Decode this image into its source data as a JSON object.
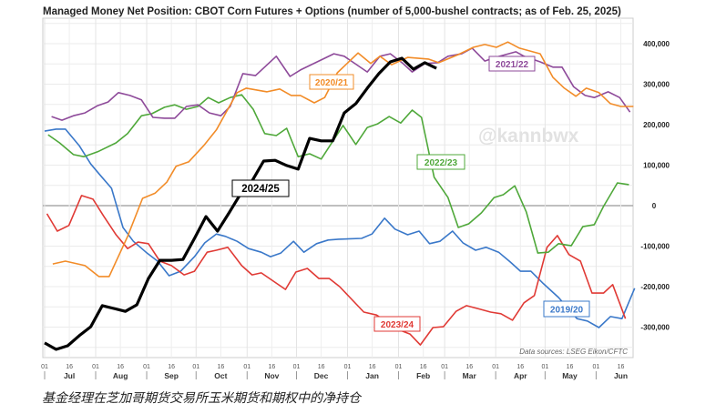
{
  "chart_data": {
    "type": "line",
    "title": "Managed Money Net Position: CBOT Corn Futures + Options (number of 5,000-bushel contracts; as of Feb. 25, 2025)",
    "xlabel": "",
    "ylabel": "",
    "x_unit": "weeks since Jul 01",
    "ylim": [
      -375000,
      465000
    ],
    "y_ticks": [
      400000,
      300000,
      200000,
      100000,
      0,
      -100000,
      -200000,
      -300000
    ],
    "y_tick_labels": [
      "400,000",
      "300,000",
      "200,000",
      "100,000",
      "0",
      "-100,000",
      "-200,000",
      "-300,000"
    ],
    "x_months": [
      "Jul",
      "Aug",
      "Sep",
      "Oct",
      "Nov",
      "Dec",
      "Jan",
      "Feb",
      "Mar",
      "Apr",
      "May",
      "Jun"
    ],
    "x_day_ticks": [
      "01",
      "16"
    ],
    "grid": true,
    "watermark": "@kannbwx",
    "source_note": "Data sources: LSEG Eikon/CFTC",
    "series": [
      {
        "name": "2019/20",
        "color": "#3a78c9",
        "width": 1.6,
        "points": [
          [
            0,
            184
          ],
          [
            1,
            189
          ],
          [
            1.8,
            189
          ],
          [
            3,
            148
          ],
          [
            4,
            103
          ],
          [
            4.8,
            76
          ],
          [
            5.8,
            43
          ],
          [
            6.8,
            -54
          ],
          [
            7.7,
            -88
          ],
          [
            8.8,
            -115
          ],
          [
            9.8,
            -137
          ],
          [
            10.8,
            -173
          ],
          [
            11.8,
            -162
          ],
          [
            13,
            -126
          ],
          [
            13.9,
            -92
          ],
          [
            14.9,
            -70
          ],
          [
            15.7,
            -76
          ],
          [
            16.7,
            -88
          ],
          [
            17.7,
            -106
          ],
          [
            18.8,
            -115
          ],
          [
            19.6,
            -126
          ],
          [
            20.5,
            -117
          ],
          [
            21.6,
            -88
          ],
          [
            22.5,
            -115
          ],
          [
            23.6,
            -94
          ],
          [
            24.6,
            -85
          ],
          [
            25.5,
            -83
          ],
          [
            27.5,
            -81
          ],
          [
            28.4,
            -70
          ],
          [
            29.5,
            -31
          ],
          [
            30.4,
            -58
          ],
          [
            31.5,
            -72
          ],
          [
            32.5,
            -63
          ],
          [
            33.4,
            -94
          ],
          [
            34.3,
            -88
          ],
          [
            35.4,
            -63
          ],
          [
            36.3,
            -92
          ],
          [
            37.4,
            -110
          ],
          [
            38.3,
            -103
          ],
          [
            39.4,
            -115
          ],
          [
            40.4,
            -139
          ],
          [
            41.3,
            -162
          ],
          [
            42.2,
            -162
          ],
          [
            43.3,
            -193
          ],
          [
            44.6,
            -227
          ],
          [
            46.2,
            -279
          ],
          [
            47.1,
            -285
          ],
          [
            48.1,
            -301
          ],
          [
            49.1,
            -274
          ],
          [
            50.1,
            -279
          ],
          [
            51.2,
            -204
          ]
        ]
      },
      {
        "name": "2020/21",
        "color": "#f28c28",
        "width": 1.6,
        "points": [
          [
            0.7,
            -144
          ],
          [
            1.8,
            -137
          ],
          [
            3.5,
            -148
          ],
          [
            4.7,
            -175
          ],
          [
            5.6,
            -175
          ],
          [
            7.2,
            -76
          ],
          [
            8.5,
            18
          ],
          [
            9.6,
            31
          ],
          [
            10.6,
            58
          ],
          [
            11.4,
            97
          ],
          [
            12.5,
            108
          ],
          [
            13.8,
            148
          ],
          [
            14.9,
            187
          ],
          [
            15.9,
            238
          ],
          [
            16.7,
            279
          ],
          [
            17.5,
            290
          ],
          [
            19.3,
            281
          ],
          [
            20.4,
            288
          ],
          [
            21.4,
            272
          ],
          [
            22.2,
            272
          ],
          [
            23.4,
            254
          ],
          [
            24.3,
            267
          ],
          [
            25.4,
            328
          ],
          [
            27.2,
            377
          ],
          [
            28.3,
            351
          ],
          [
            29.1,
            369
          ],
          [
            30.1,
            348
          ],
          [
            31.5,
            366
          ],
          [
            33.3,
            362
          ],
          [
            34.2,
            353
          ],
          [
            35.9,
            373
          ],
          [
            37.2,
            391
          ],
          [
            38.2,
            398
          ],
          [
            39.2,
            391
          ],
          [
            40.2,
            404
          ],
          [
            41.2,
            389
          ],
          [
            43,
            375
          ],
          [
            44.1,
            317
          ],
          [
            45.1,
            290
          ],
          [
            46.1,
            270
          ],
          [
            47,
            290
          ],
          [
            48.1,
            279
          ],
          [
            49.1,
            252
          ],
          [
            50,
            245
          ],
          [
            51.1,
            245
          ]
        ]
      },
      {
        "name": "2021/22",
        "color": "#8e4a9a",
        "width": 1.6,
        "points": [
          [
            0.6,
            220
          ],
          [
            1.5,
            211
          ],
          [
            2.5,
            222
          ],
          [
            3.5,
            229
          ],
          [
            4.6,
            247
          ],
          [
            5.5,
            256
          ],
          [
            6.4,
            279
          ],
          [
            7.4,
            272
          ],
          [
            8.4,
            261
          ],
          [
            9.4,
            218
          ],
          [
            10.4,
            216
          ],
          [
            11.3,
            216
          ],
          [
            12.3,
            245
          ],
          [
            13.3,
            249
          ],
          [
            14.3,
            229
          ],
          [
            15.3,
            222
          ],
          [
            16.1,
            245
          ],
          [
            17.2,
            326
          ],
          [
            18.3,
            321
          ],
          [
            20.1,
            369
          ],
          [
            21.3,
            319
          ],
          [
            22.2,
            335
          ],
          [
            25.1,
            375
          ],
          [
            26,
            369
          ],
          [
            28,
            330
          ],
          [
            29.1,
            369
          ],
          [
            30,
            375
          ],
          [
            31.1,
            351
          ],
          [
            31.9,
            330
          ],
          [
            33,
            351
          ],
          [
            34.1,
            353
          ],
          [
            35,
            369
          ],
          [
            36.2,
            375
          ],
          [
            37.1,
            389
          ],
          [
            38.2,
            357
          ],
          [
            39.1,
            366
          ],
          [
            40.9,
            380
          ],
          [
            41.6,
            369
          ],
          [
            43,
            355
          ],
          [
            44.1,
            342
          ],
          [
            44.9,
            342
          ],
          [
            45.9,
            294
          ],
          [
            46.9,
            272
          ],
          [
            47.7,
            267
          ],
          [
            48.9,
            281
          ],
          [
            49.9,
            267
          ],
          [
            50.8,
            231
          ]
        ]
      },
      {
        "name": "2022/23",
        "color": "#4fa83a",
        "width": 1.6,
        "points": [
          [
            0.3,
            175
          ],
          [
            1.3,
            155
          ],
          [
            2.5,
            126
          ],
          [
            3.4,
            121
          ],
          [
            4.6,
            133
          ],
          [
            6.2,
            155
          ],
          [
            7.2,
            178
          ],
          [
            8.4,
            222
          ],
          [
            9.3,
            227
          ],
          [
            10.4,
            243
          ],
          [
            11.3,
            249
          ],
          [
            12.3,
            238
          ],
          [
            13.3,
            245
          ],
          [
            14.2,
            267
          ],
          [
            15.1,
            254
          ],
          [
            16.1,
            267
          ],
          [
            17.1,
            274
          ],
          [
            18.1,
            238
          ],
          [
            19.1,
            178
          ],
          [
            20.1,
            173
          ],
          [
            21,
            191
          ],
          [
            22,
            121
          ],
          [
            23,
            128
          ],
          [
            24,
            115
          ],
          [
            25.9,
            198
          ],
          [
            27,
            151
          ],
          [
            28,
            193
          ],
          [
            28.9,
            202
          ],
          [
            29.9,
            220
          ],
          [
            30.9,
            204
          ],
          [
            31.9,
            236
          ],
          [
            32.7,
            218
          ],
          [
            33.8,
            70
          ],
          [
            35,
            20
          ],
          [
            35.9,
            -54
          ],
          [
            36.8,
            -45
          ],
          [
            37.9,
            -18
          ],
          [
            39,
            20
          ],
          [
            39.8,
            27
          ],
          [
            40.8,
            49
          ],
          [
            41.8,
            -16
          ],
          [
            42.8,
            -117
          ],
          [
            43.7,
            -115
          ],
          [
            44.6,
            -94
          ],
          [
            45.7,
            -99
          ],
          [
            46.7,
            -52
          ],
          [
            47.7,
            -47
          ],
          [
            48.5,
            -2
          ],
          [
            49.7,
            56
          ],
          [
            50.7,
            52
          ]
        ]
      },
      {
        "name": "2023/24",
        "color": "#e03a35",
        "width": 1.6,
        "points": [
          [
            0.2,
            -20
          ],
          [
            1.1,
            -63
          ],
          [
            2.1,
            -49
          ],
          [
            3.2,
            25
          ],
          [
            4.2,
            16
          ],
          [
            5.1,
            -25
          ],
          [
            6.2,
            -72
          ],
          [
            7.2,
            -106
          ],
          [
            8.1,
            -90
          ],
          [
            9,
            -94
          ],
          [
            10,
            -137
          ],
          [
            11,
            -148
          ],
          [
            12.1,
            -171
          ],
          [
            13,
            -162
          ],
          [
            14.1,
            -115
          ],
          [
            14.9,
            -110
          ],
          [
            15.9,
            -103
          ],
          [
            17.1,
            -148
          ],
          [
            18,
            -171
          ],
          [
            18.8,
            -166
          ],
          [
            20.9,
            -207
          ],
          [
            21.8,
            -164
          ],
          [
            22.8,
            -155
          ],
          [
            23.8,
            -180
          ],
          [
            24.7,
            -180
          ],
          [
            25.6,
            -200
          ],
          [
            27.7,
            -263
          ],
          [
            28.8,
            -270
          ],
          [
            30.7,
            -306
          ],
          [
            31.7,
            -317
          ],
          [
            32.6,
            -344
          ],
          [
            33.7,
            -301
          ],
          [
            34.6,
            -299
          ],
          [
            35.7,
            -261
          ],
          [
            36.6,
            -247
          ],
          [
            37.8,
            -256
          ],
          [
            38.7,
            -263
          ],
          [
            39.6,
            -267
          ],
          [
            40.6,
            -283
          ],
          [
            41.6,
            -240
          ],
          [
            42.5,
            -222
          ],
          [
            43.6,
            -103
          ],
          [
            44.5,
            -74
          ],
          [
            45.5,
            -121
          ],
          [
            46.5,
            -137
          ],
          [
            47.5,
            -216
          ],
          [
            48.5,
            -216
          ],
          [
            49.3,
            -195
          ],
          [
            50.4,
            -279
          ]
        ]
      },
      {
        "name": "2024/25",
        "color": "#000000",
        "width": 3.2,
        "points": [
          [
            0,
            -339
          ],
          [
            1,
            -355
          ],
          [
            2,
            -346
          ],
          [
            3,
            -321
          ],
          [
            4,
            -299
          ],
          [
            5,
            -247
          ],
          [
            6,
            -254
          ],
          [
            7,
            -261
          ],
          [
            8,
            -245
          ],
          [
            9,
            -180
          ],
          [
            10,
            -135
          ],
          [
            11,
            -135
          ],
          [
            12,
            -133
          ],
          [
            13,
            -81
          ],
          [
            14,
            -27
          ],
          [
            15,
            -63
          ],
          [
            16,
            -18
          ],
          [
            17,
            29
          ],
          [
            18,
            61
          ],
          [
            19,
            110
          ],
          [
            20,
            112
          ],
          [
            21,
            99
          ],
          [
            22,
            90
          ],
          [
            23,
            166
          ],
          [
            24,
            160
          ],
          [
            25,
            160
          ],
          [
            26,
            229
          ],
          [
            27,
            252
          ],
          [
            28,
            290
          ],
          [
            29,
            326
          ],
          [
            30,
            355
          ],
          [
            31,
            364
          ],
          [
            32,
            337
          ],
          [
            33,
            353
          ],
          [
            34,
            339
          ]
        ]
      }
    ],
    "value_unit": "thousand contracts"
  },
  "caption": "基金经理在芝加哥期货交易所玉米期货和期权中的净持仓"
}
